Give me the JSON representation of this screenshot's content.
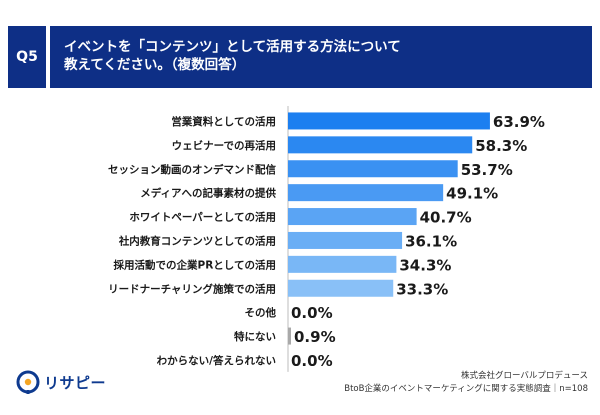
{
  "question": {
    "number": "Q5",
    "line1": "イベントを「コンテンツ」として活用する方法について",
    "line2": "教えてください。（複数回答）"
  },
  "chart_data": {
    "type": "bar",
    "orientation": "horizontal",
    "categories": [
      "営業資料としての活用",
      "ウェビナーでの再活用",
      "セッション動画のオンデマンド配信",
      "メディアへの記事素材の提供",
      "ホワイトペーパーとしての活用",
      "社内教育コンテンツとしての活用",
      "採用活動での企業PRとしての活用",
      "リードナーチャリング施策での活用",
      "その他",
      "特にない",
      "わからない/答えられない"
    ],
    "values": [
      63.9,
      58.3,
      53.7,
      49.1,
      40.7,
      36.1,
      34.3,
      33.3,
      0.0,
      0.9,
      0.0
    ],
    "value_labels": [
      "63.9%",
      "58.3%",
      "53.7%",
      "49.1%",
      "40.7%",
      "36.1%",
      "34.3%",
      "33.3%",
      "0.0%",
      "0.9%",
      "0.0%"
    ],
    "bar_colors": [
      "#1c7ff0",
      "#2b88f1",
      "#3a91f2",
      "#4a9af3",
      "#5aa4f4",
      "#6aaef5",
      "#79b7f6",
      "#89c0f7",
      "#a9a9a9",
      "#a9a9a9",
      "#a9a9a9"
    ],
    "xlim": [
      0,
      100
    ],
    "grid": false,
    "legend": "none"
  },
  "brand": {
    "logo_text": "リサピー",
    "logo_color": "#0e3a8f",
    "accent_color": "#f5a623"
  },
  "source": {
    "line1": "株式会社グローバルプロデュース",
    "line2": "BtoB企業のイベントマーケティングに関する実態調査｜n=108"
  }
}
